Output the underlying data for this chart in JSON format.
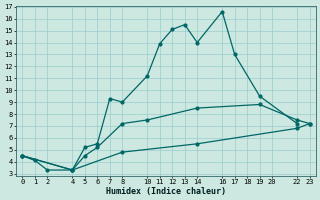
{
  "xlabel": "Humidex (Indice chaleur)",
  "bg_color": "#cce8e0",
  "line_color": "#006666",
  "grid_color": "#99cccc",
  "ylim": [
    3,
    17
  ],
  "xlim": [
    -0.5,
    23.5
  ],
  "yticks": [
    3,
    4,
    5,
    6,
    7,
    8,
    9,
    10,
    11,
    12,
    13,
    14,
    15,
    16,
    17
  ],
  "xticks": [
    0,
    1,
    2,
    4,
    5,
    6,
    7,
    8,
    10,
    11,
    12,
    13,
    14,
    16,
    17,
    18,
    19,
    20,
    22,
    23
  ],
  "xtick_labels": [
    "0",
    "1",
    "2",
    "4",
    "5",
    "6",
    "7",
    "8",
    "10",
    "11",
    "12",
    "13",
    "14",
    "16",
    "17",
    "18",
    "19",
    "20",
    "22",
    "23"
  ],
  "line1_x": [
    0,
    1,
    2,
    4,
    5,
    6,
    7,
    8,
    10,
    11,
    12,
    13,
    14,
    16,
    17,
    19,
    22
  ],
  "line1_y": [
    4.5,
    4.1,
    3.3,
    3.3,
    5.2,
    5.5,
    9.3,
    9.0,
    11.2,
    13.9,
    15.1,
    15.5,
    14.0,
    16.6,
    13.0,
    9.5,
    7.2
  ],
  "line2_x": [
    0,
    4,
    5,
    6,
    8,
    10,
    14,
    19,
    22,
    23
  ],
  "line2_y": [
    4.5,
    3.3,
    4.5,
    5.2,
    7.2,
    7.5,
    8.5,
    8.8,
    7.5,
    7.2
  ],
  "line3_x": [
    0,
    4,
    8,
    14,
    22,
    23
  ],
  "line3_y": [
    4.5,
    3.3,
    4.8,
    5.5,
    6.8,
    7.2
  ]
}
